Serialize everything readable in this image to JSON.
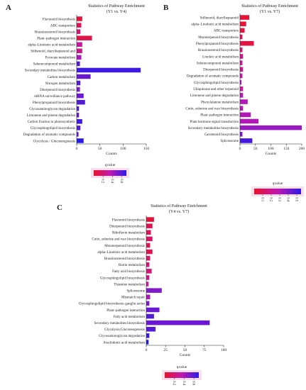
{
  "colors": {
    "low": "#e8132b",
    "mid": "#c018b0",
    "high": "#2a1ae8",
    "axis": "#222222",
    "highlight": "#f06aa0"
  },
  "chart_data": [
    {
      "type": "bar",
      "orientation": "horizontal",
      "panel_label": "A",
      "title": "Statistics of Pathway Enrichment",
      "subtitle": "(Y1 vs. Y4)",
      "xlabel": "Counts",
      "xlim": [
        0,
        150
      ],
      "xticks": [
        "0",
        "50",
        "100",
        "150"
      ],
      "highlight_category": "Flavonoid biosynthesis",
      "categories": [
        "Flavonoid biosynthesis",
        "ABC transporters",
        "Brassinosteroid biosynthesis",
        "Plant–pathogen interaction",
        "alpha–Linolenic acid metabolism",
        "Stilbenoid, diarylheptanoid and",
        "Pyruvate metabolism",
        "Selenocompound metabolism",
        "Secondary metabolites biosynthesis",
        "Carbon metabolism",
        "Nitrogen metabolism",
        "Diterpenoid biosynthesis",
        "mRNA surveillance pathway",
        "Phenylpropanoid biosynthesis",
        "Glycosaminoglycan degradation",
        "Limonene and pinene degradation",
        "Carbon fixation in photosynthetic",
        "Glycosphingolipid biosynthesis",
        "Degradation of aromatic compounds",
        "Glycolysis / Gluconeogenesis"
      ],
      "values": [
        12,
        10,
        8,
        33,
        12,
        12,
        10,
        7,
        138,
        30,
        8,
        7,
        15,
        18,
        5,
        5,
        12,
        8,
        4,
        15
      ],
      "qvalue": [
        0.05,
        0.1,
        0.2,
        0.08,
        0.3,
        0.25,
        0.4,
        0.6,
        0.65,
        0.55,
        0.6,
        0.5,
        0.55,
        0.6,
        0.6,
        0.55,
        0.65,
        0.6,
        0.55,
        0.7
      ],
      "legend": {
        "title": "qvalue",
        "ticks": [
          "0.2",
          "0.4",
          "0.6"
        ],
        "range": [
          0,
          0.7
        ],
        "tick_values": [
          0.2,
          0.4,
          0.6
        ]
      }
    },
    {
      "type": "bar",
      "orientation": "horizontal",
      "panel_label": "B",
      "title": "Statistics of Pathway Enrichment",
      "subtitle": "(Y1 vs. Y7)",
      "xlabel": "Counts",
      "xlim": [
        0,
        200
      ],
      "xticks": [
        "0",
        "50",
        "100",
        "150",
        "200"
      ],
      "highlight_category": "",
      "categories": [
        "Stilbenoid, diarylheptanoid",
        "alpha–Linolenic acid metabolism",
        "ABC transporters",
        "Monoterpenoid biosynthesis",
        "Phenylpropanoid biosynthesis",
        "Brassinosteroid biosynthesis",
        "Linoleic acid metabolism",
        "Selenocompound metabolism",
        "Diterpenoid biosynthesis",
        "Degradation of aromatic compounds",
        "Glycosphingolipid biosynthesis",
        "Ubiquinone and other terpenoid",
        "Limonene and pinene degradation",
        "Phenylalanine metabolism",
        "Cutin, suberine and wax biosynthesis",
        "Plant–pathogen interaction",
        "Plant hormone signal transduction",
        "Secondary metabolites biosynthesis",
        "Carotenoid biosynthesis",
        "Spliceosome"
      ],
      "values": [
        30,
        20,
        15,
        8,
        45,
        8,
        10,
        8,
        10,
        8,
        5,
        10,
        10,
        25,
        10,
        35,
        60,
        200,
        8,
        40
      ],
      "qvalue": [
        0.02,
        0.02,
        0.05,
        0.1,
        0.05,
        0.15,
        0.2,
        0.25,
        0.2,
        0.25,
        0.3,
        0.25,
        0.3,
        0.3,
        0.3,
        0.3,
        0.3,
        0.35,
        0.4,
        0.5
      ],
      "legend": {
        "title": "qvalue",
        "ticks": [
          "0.1",
          "0.2",
          "0.3",
          "0.4",
          "0.5"
        ],
        "range": [
          0,
          0.55
        ],
        "tick_values": [
          0.1,
          0.2,
          0.3,
          0.4,
          0.5
        ]
      }
    },
    {
      "type": "bar",
      "orientation": "horizontal",
      "panel_label": "C",
      "title": "Statistics of Pathway Enrichment",
      "subtitle": "(Y4 vs. Y7)",
      "xlabel": "Counts",
      "xlim": [
        0,
        100
      ],
      "xticks": [
        "0",
        "25",
        "50",
        "75",
        "100"
      ],
      "highlight_category": "Flavonoid biosynthesis",
      "categories": [
        "Flavonoid biosynthesis",
        "Diterpenoid biosynthesis",
        "Riboflavin metabolism",
        "Cutin, suberine and wax biosynthesis",
        "Monoterpenoid biosynthesis",
        "alpha–Linolenic acid metabolism",
        "Brassinosteroid biosynthesis",
        "Biotin metabolism",
        "Fatty acid biosynthesis",
        "Glycosphingolipid biosynthesis",
        "Thiamine metabolism",
        "Spliceosome",
        "Mismatch repair",
        "Glycosphingolipid biosynthesis–ganglio series",
        "Plant–pathogen interaction",
        "Fatty acid metabolism",
        "Secondary metabolites biosynthesis",
        "Glycolysis/Gluconeogenesis",
        "Glycosaminoglycan degradation",
        "Arachidonic acid metabolism"
      ],
      "values": [
        10,
        8,
        6,
        8,
        5,
        8,
        5,
        4,
        7,
        4,
        3,
        20,
        5,
        4,
        17,
        10,
        82,
        12,
        4,
        3
      ],
      "qvalue": [
        0.05,
        0.1,
        0.1,
        0.15,
        0.1,
        0.1,
        0.15,
        0.2,
        0.2,
        0.25,
        0.3,
        0.5,
        0.4,
        0.5,
        0.55,
        0.6,
        0.55,
        0.6,
        0.65,
        0.7
      ],
      "legend": {
        "title": "qvalue",
        "ticks": [
          "0.2",
          "0.4",
          "0.6"
        ],
        "range": [
          0,
          0.7
        ],
        "tick_values": [
          0.2,
          0.4,
          0.6
        ]
      }
    }
  ]
}
